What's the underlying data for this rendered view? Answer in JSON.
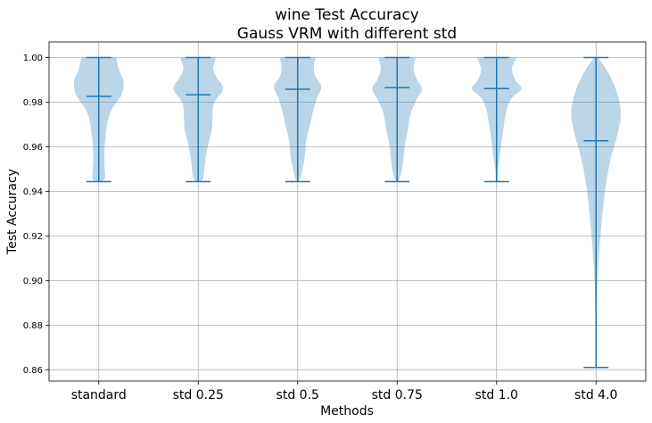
{
  "chart_data": {
    "type": "violin",
    "title": "wine Test Accuracy",
    "subtitle": "Gauss VRM with different std",
    "xlabel": "Methods",
    "ylabel": "Test Accuracy",
    "ylim": [
      0.855,
      1.007
    ],
    "yticks": [
      "0.86",
      "0.88",
      "0.90",
      "0.92",
      "0.94",
      "0.96",
      "0.98",
      "1.00"
    ],
    "grid": true,
    "color": "#1f77b4",
    "categories": [
      "standard",
      "std 0.25",
      "std 0.5",
      "std 0.75",
      "std 1.0",
      "std 4.0"
    ],
    "series": [
      {
        "min": 0.9444,
        "max": 1.0,
        "mean": 0.9826,
        "profile": [
          [
            0.9444,
            0.06
          ],
          [
            0.946,
            0.25
          ],
          [
            0.955,
            0.22
          ],
          [
            0.965,
            0.28
          ],
          [
            0.975,
            0.45
          ],
          [
            0.983,
            0.9
          ],
          [
            0.989,
            1.0
          ],
          [
            0.995,
            0.8
          ],
          [
            1.0,
            0.7
          ]
        ]
      },
      {
        "min": 0.9444,
        "max": 1.0,
        "mean": 0.9833,
        "profile": [
          [
            0.9444,
            0.05
          ],
          [
            0.946,
            0.2
          ],
          [
            0.955,
            0.3
          ],
          [
            0.962,
            0.42
          ],
          [
            0.968,
            0.55
          ],
          [
            0.975,
            0.58
          ],
          [
            0.98,
            0.65
          ],
          [
            0.986,
            1.0
          ],
          [
            0.991,
            0.75
          ],
          [
            0.995,
            0.6
          ],
          [
            1.0,
            0.72
          ]
        ]
      },
      {
        "min": 0.9444,
        "max": 1.0,
        "mean": 0.9858,
        "profile": [
          [
            0.9444,
            0.05
          ],
          [
            0.948,
            0.15
          ],
          [
            0.955,
            0.28
          ],
          [
            0.963,
            0.35
          ],
          [
            0.97,
            0.5
          ],
          [
            0.976,
            0.62
          ],
          [
            0.982,
            0.78
          ],
          [
            0.987,
            0.95
          ],
          [
            0.992,
            0.7
          ],
          [
            0.996,
            0.65
          ],
          [
            1.0,
            0.72
          ]
        ]
      },
      {
        "min": 0.9444,
        "max": 1.0,
        "mean": 0.9865,
        "profile": [
          [
            0.9444,
            0.05
          ],
          [
            0.95,
            0.2
          ],
          [
            0.96,
            0.3
          ],
          [
            0.967,
            0.42
          ],
          [
            0.975,
            0.55
          ],
          [
            0.981,
            0.78
          ],
          [
            0.986,
            1.0
          ],
          [
            0.99,
            0.8
          ],
          [
            0.995,
            0.66
          ],
          [
            1.0,
            0.75
          ]
        ]
      },
      {
        "min": 0.9444,
        "max": 1.0,
        "mean": 0.9861,
        "profile": [
          [
            0.9444,
            0.03
          ],
          [
            0.95,
            0.06
          ],
          [
            0.955,
            0.12
          ],
          [
            0.962,
            0.2
          ],
          [
            0.97,
            0.3
          ],
          [
            0.977,
            0.42
          ],
          [
            0.982,
            0.62
          ],
          [
            0.986,
            1.0
          ],
          [
            0.99,
            0.75
          ],
          [
            0.995,
            0.62
          ],
          [
            1.0,
            0.8
          ]
        ]
      },
      {
        "min": 0.8611,
        "max": 1.0,
        "mean": 0.9627,
        "profile": [
          [
            0.8611,
            0.02
          ],
          [
            0.88,
            0.03
          ],
          [
            0.9,
            0.06
          ],
          [
            0.92,
            0.18
          ],
          [
            0.94,
            0.36
          ],
          [
            0.955,
            0.6
          ],
          [
            0.965,
            0.85
          ],
          [
            0.975,
            1.0
          ],
          [
            0.985,
            0.82
          ],
          [
            0.993,
            0.5
          ],
          [
            1.0,
            0.08
          ]
        ]
      }
    ]
  }
}
